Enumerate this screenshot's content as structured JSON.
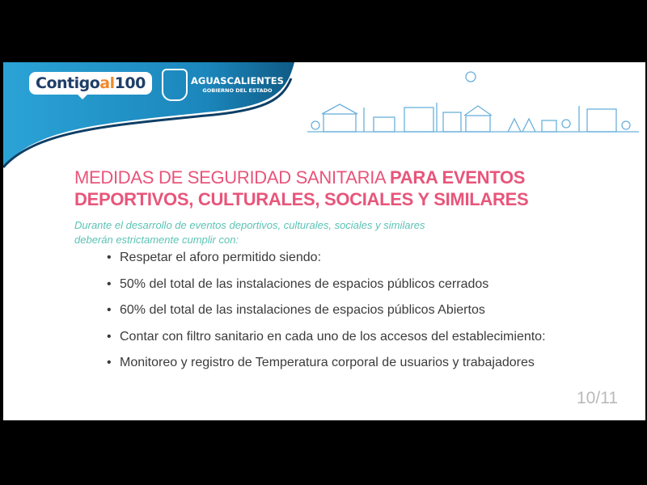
{
  "header": {
    "logo_main": "Contigo",
    "logo_al": "al",
    "logo_num": "100",
    "gov_name": "AGUASCALIENTES",
    "gov_sub": "GOBIERNO DEL ESTADO",
    "brand_color": "#1a8fc4",
    "accent_color": "#e8557a"
  },
  "slide": {
    "title_light": "MEDIDAS DE SEGURIDAD SANITARIA",
    "title_bold_1": "PARA EVENTOS",
    "title_bold_2": "DEPORTIVOS, CULTURALES, SOCIALES Y SIMILARES",
    "intro_1": "Durante el desarrollo de eventos deportivos, culturales, sociales y similares",
    "intro_2": "deberán estrictamente cumplir con:",
    "bullets": [
      "Respetar el aforo permitido siendo:",
      "50% del total de las instalaciones de espacios públicos cerrados",
      "60% del total de las instalaciones de espacios públicos Abiertos",
      "Contar con filtro sanitario en cada uno de los accesos del establecimiento:",
      "Monitoreo y registro de Temperatura corporal de usuarios y trabajadores"
    ],
    "page_indicator": "10/11"
  }
}
